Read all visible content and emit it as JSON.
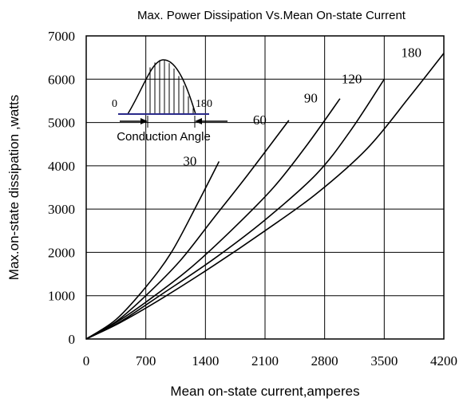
{
  "chart_data": {
    "type": "line",
    "title": "Max. Power Dissipation Vs.Mean On-state Current",
    "xlabel": "Mean on-state current,amperes",
    "ylabel": "Max.on-state dissipation ,watts",
    "xlim": [
      0,
      4200
    ],
    "ylim": [
      0,
      7000
    ],
    "xticks": [
      "0",
      "700",
      "1400",
      "2100",
      "2800",
      "3500",
      "4200"
    ],
    "yticks": [
      "0",
      "1000",
      "2000",
      "3000",
      "4000",
      "5000",
      "6000",
      "7000"
    ],
    "grid": true,
    "series": [
      {
        "name": "30",
        "x": [
          0,
          350,
          700,
          1000,
          1300,
          1560
        ],
        "y": [
          0,
          450,
          1200,
          2000,
          3100,
          4100
        ]
      },
      {
        "name": "60",
        "x": [
          0,
          350,
          700,
          1100,
          1500,
          1900,
          2380
        ],
        "y": [
          0,
          400,
          1000,
          1800,
          2800,
          3800,
          5050
        ]
      },
      {
        "name": "90",
        "x": [
          0,
          350,
          700,
          1200,
          1700,
          2200,
          2600,
          2980
        ],
        "y": [
          0,
          380,
          850,
          1600,
          2500,
          3500,
          4500,
          5550
        ]
      },
      {
        "name": "120",
        "x": [
          0,
          400,
          900,
          1500,
          2100,
          2700,
          3100,
          3500
        ],
        "y": [
          0,
          400,
          1050,
          1850,
          2750,
          3800,
          4800,
          6000
        ]
      },
      {
        "name": "180",
        "x": [
          0,
          400,
          900,
          1500,
          2100,
          2700,
          3300,
          3800,
          4200
        ],
        "y": [
          0,
          380,
          950,
          1700,
          2500,
          3350,
          4400,
          5600,
          6600
        ]
      }
    ],
    "inset": {
      "left_label": "0",
      "right_label": "180",
      "caption": "Conduction Angle"
    }
  }
}
